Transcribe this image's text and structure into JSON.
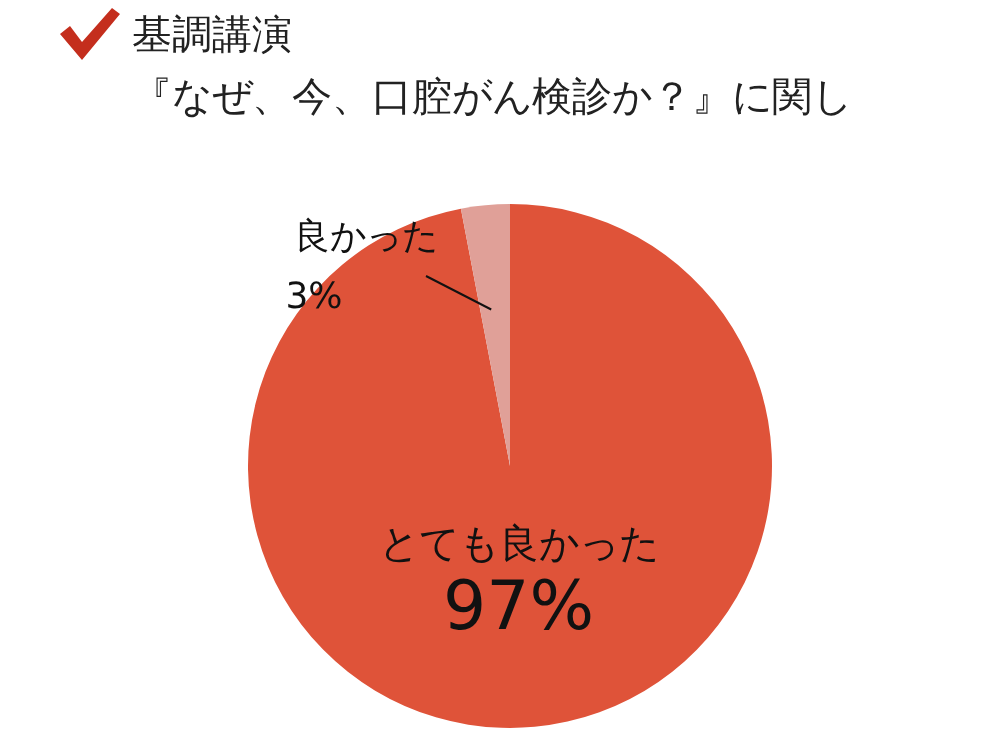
{
  "chart_data": {
    "type": "pie",
    "title": "基調講演",
    "subtitle": "『なぜ、今、口腔がん検診か？』に関し",
    "categories": [
      "とても良かった",
      "良かった"
    ],
    "values": [
      97,
      3
    ],
    "colors": [
      "#df5339",
      "#e0a098"
    ],
    "value_labels": [
      "97%",
      "3%"
    ],
    "legend": false
  }
}
